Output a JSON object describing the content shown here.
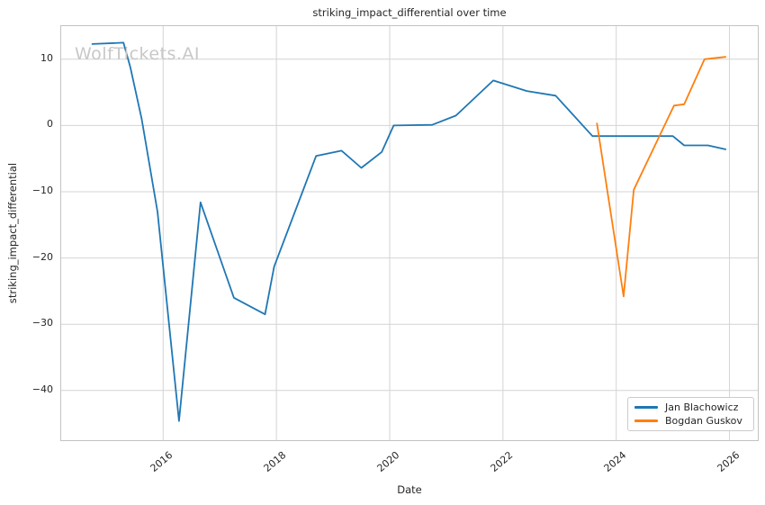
{
  "watermark": "WolfTickets.AI",
  "chart_data": {
    "type": "line",
    "title": "striking_impact_differential over time",
    "xlabel": "Date",
    "ylabel": "striking_impact_differential",
    "xlim": [
      2014.2,
      2026.5
    ],
    "ylim": [
      -47.5,
      15
    ],
    "grid": true,
    "legend_position": "lower right",
    "grid_color": "#d4d4d4",
    "spine_color": "#c3c3c3",
    "text_color": "#262626",
    "watermark_color": "#c8c8c8",
    "xticks": [
      {
        "v": 2016,
        "label": "2016"
      },
      {
        "v": 2018,
        "label": "2018"
      },
      {
        "v": 2020,
        "label": "2020"
      },
      {
        "v": 2022,
        "label": "2022"
      },
      {
        "v": 2024,
        "label": "2024"
      },
      {
        "v": 2026,
        "label": "2026"
      }
    ],
    "yticks": [
      {
        "v": 10,
        "label": "10"
      },
      {
        "v": 0,
        "label": "0"
      },
      {
        "v": -10,
        "label": "−10"
      },
      {
        "v": -20,
        "label": "−20"
      },
      {
        "v": -30,
        "label": "−30"
      },
      {
        "v": -40,
        "label": "−40"
      }
    ],
    "series": [
      {
        "name": "Jan Blachowicz",
        "color": "#1f77b4",
        "points": [
          [
            2014.75,
            12.3
          ],
          [
            2015.3,
            12.5
          ],
          [
            2015.42,
            8.8
          ],
          [
            2015.62,
            1.0
          ],
          [
            2015.9,
            -13.0
          ],
          [
            2016.28,
            -44.6
          ],
          [
            2016.66,
            -11.6
          ],
          [
            2017.25,
            -26.0
          ],
          [
            2017.8,
            -28.5
          ],
          [
            2017.96,
            -21.3
          ],
          [
            2018.7,
            -4.6
          ],
          [
            2019.15,
            -3.8
          ],
          [
            2019.5,
            -6.4
          ],
          [
            2019.86,
            -4.0
          ],
          [
            2020.07,
            0.0
          ],
          [
            2020.75,
            0.1
          ],
          [
            2021.17,
            1.5
          ],
          [
            2021.83,
            6.8
          ],
          [
            2022.42,
            5.2
          ],
          [
            2022.93,
            4.5
          ],
          [
            2023.58,
            -1.6
          ],
          [
            2025.0,
            -1.6
          ],
          [
            2025.2,
            -3.0
          ],
          [
            2025.62,
            -3.0
          ],
          [
            2025.93,
            -3.6
          ]
        ]
      },
      {
        "name": "Bogdan Guskov",
        "color": "#ff7f0e",
        "points": [
          [
            2023.66,
            0.3
          ],
          [
            2024.13,
            -25.8
          ],
          [
            2024.31,
            -9.7
          ],
          [
            2025.02,
            3.0
          ],
          [
            2025.2,
            3.2
          ],
          [
            2025.56,
            10.0
          ],
          [
            2025.93,
            10.35
          ]
        ]
      }
    ]
  }
}
